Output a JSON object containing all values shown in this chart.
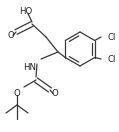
{
  "bg_color": "#ffffff",
  "line_color": "#383838",
  "text_color": "#222222",
  "lw": 0.9,
  "fontsize": 6.2,
  "fig_w": 1.19,
  "fig_h": 1.32,
  "dpi": 100,
  "xlim": [
    0,
    119
  ],
  "ylim": [
    0,
    132
  ]
}
